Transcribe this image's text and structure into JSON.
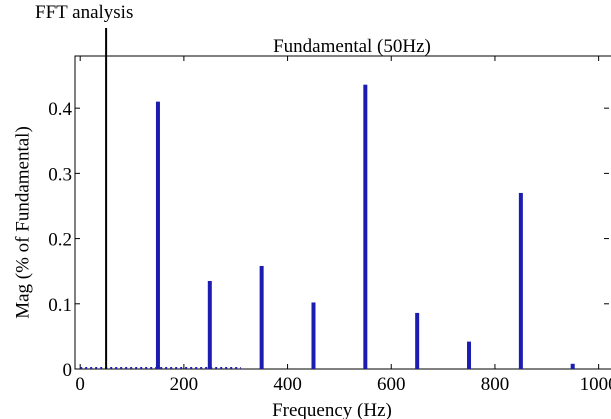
{
  "figure_title": "FFT analysis",
  "chart_data": {
    "type": "bar",
    "title": "Fundamental (50Hz)",
    "xlabel": "Frequency (Hz)",
    "ylabel": "Mag (% of Fundamental)",
    "xlim": [
      -10,
      1020
    ],
    "ylim": [
      0,
      0.48
    ],
    "xticks": [
      0,
      200,
      400,
      600,
      800,
      1000
    ],
    "yticks": [
      0,
      0.1,
      0.2,
      0.3,
      0.4
    ],
    "ytick_labels": [
      "0",
      "0.1",
      "0.2",
      "0.3",
      "0.4"
    ],
    "fundamental": {
      "x": 50,
      "label": "Fundamental (50Hz)"
    },
    "x": [
      150,
      250,
      350,
      450,
      550,
      650,
      750,
      850,
      950
    ],
    "values": [
      0.41,
      0.135,
      0.158,
      0.102,
      0.436,
      0.086,
      0.042,
      0.27,
      0.008
    ],
    "bar_color": "#1c1cb0",
    "fundamental_color": "#000000",
    "baseline_dots_color": "#1c1cb0",
    "grid": false
  }
}
